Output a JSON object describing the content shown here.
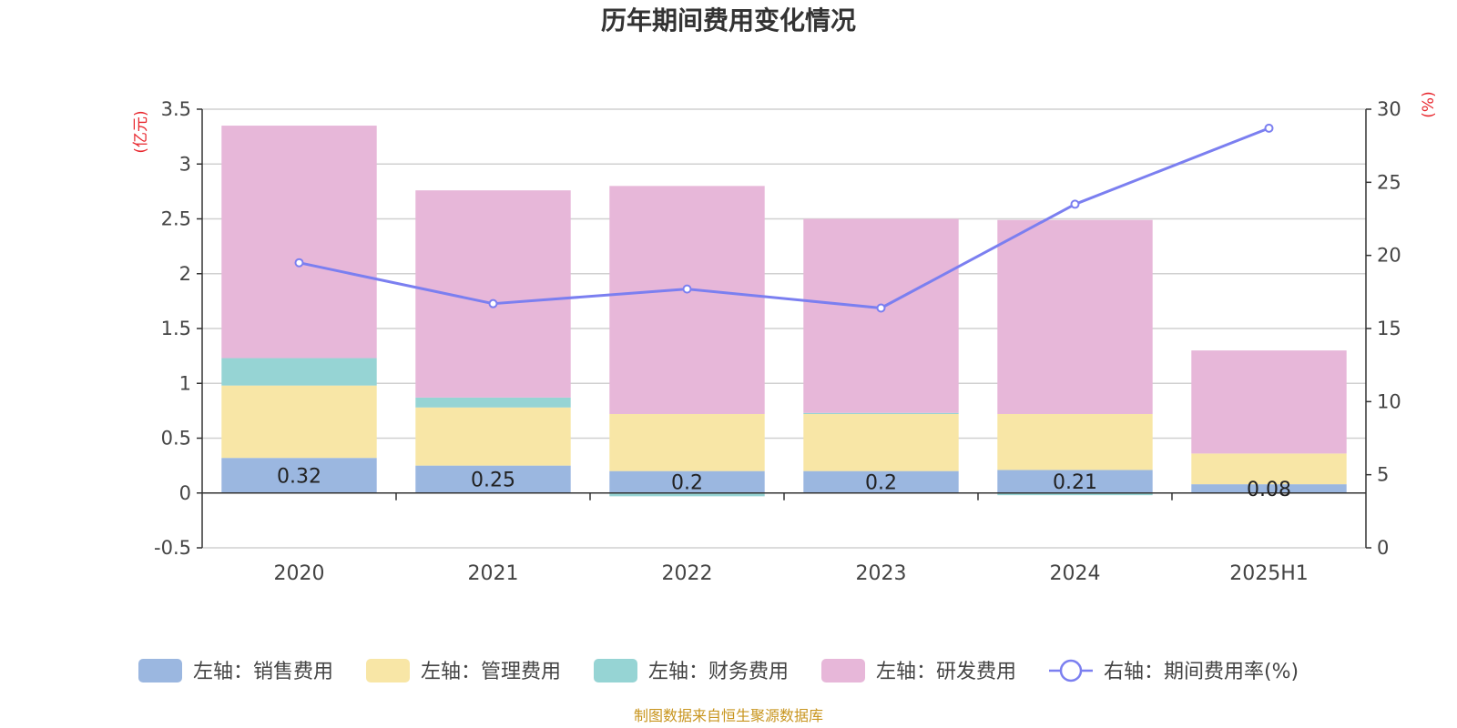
{
  "chart_data": {
    "type": "bar",
    "title": "历年期间费用变化情况",
    "left_unit": "(亿元)",
    "right_unit": "(%)",
    "categories": [
      "2020",
      "2021",
      "2022",
      "2023",
      "2024",
      "2025H1"
    ],
    "stacked": true,
    "left_axis": {
      "ylim": [
        -0.5,
        3.5
      ],
      "ticks": [
        -0.5,
        0,
        0.5,
        1,
        1.5,
        2,
        2.5,
        3,
        3.5
      ],
      "tick_labels": [
        "-0.5",
        "0",
        "0.5",
        "1",
        "1.5",
        "2",
        "2.5",
        "3",
        "3.5"
      ]
    },
    "right_axis": {
      "ylim": [
        0,
        30
      ],
      "ticks": [
        0,
        5,
        10,
        15,
        20,
        25,
        30
      ],
      "tick_labels": [
        "0",
        "5",
        "10",
        "15",
        "20",
        "25",
        "30"
      ]
    },
    "grid": true,
    "legend_position": "bottom",
    "series": [
      {
        "name": "左轴：销售费用",
        "axis": "left",
        "kind": "bar",
        "color": "#9bb7e0",
        "values": [
          0.32,
          0.25,
          0.2,
          0.2,
          0.21,
          0.08
        ],
        "labels": [
          "0.32",
          "0.25",
          "0.2",
          "0.2",
          "0.21",
          "0.08"
        ]
      },
      {
        "name": "左轴：管理费用",
        "axis": "left",
        "kind": "bar",
        "color": "#f8e6a6",
        "values": [
          0.66,
          0.53,
          0.52,
          0.52,
          0.51,
          0.28
        ]
      },
      {
        "name": "左轴：财务费用",
        "axis": "left",
        "kind": "bar",
        "color": "#96d4d4",
        "values": [
          0.25,
          0.09,
          -0.03,
          0.01,
          -0.02,
          0.0
        ]
      },
      {
        "name": "左轴：研发费用",
        "axis": "left",
        "kind": "bar",
        "color": "#e7b7d9",
        "values": [
          2.12,
          1.89,
          2.08,
          1.77,
          1.77,
          0.94
        ]
      },
      {
        "name": "右轴：期间费用率(%)",
        "axis": "right",
        "kind": "line",
        "color": "#7b7ff0",
        "values": [
          19.5,
          16.7,
          17.7,
          16.4,
          23.5,
          28.7
        ]
      }
    ]
  },
  "source_text": "制图数据来自恒生聚源数据库"
}
